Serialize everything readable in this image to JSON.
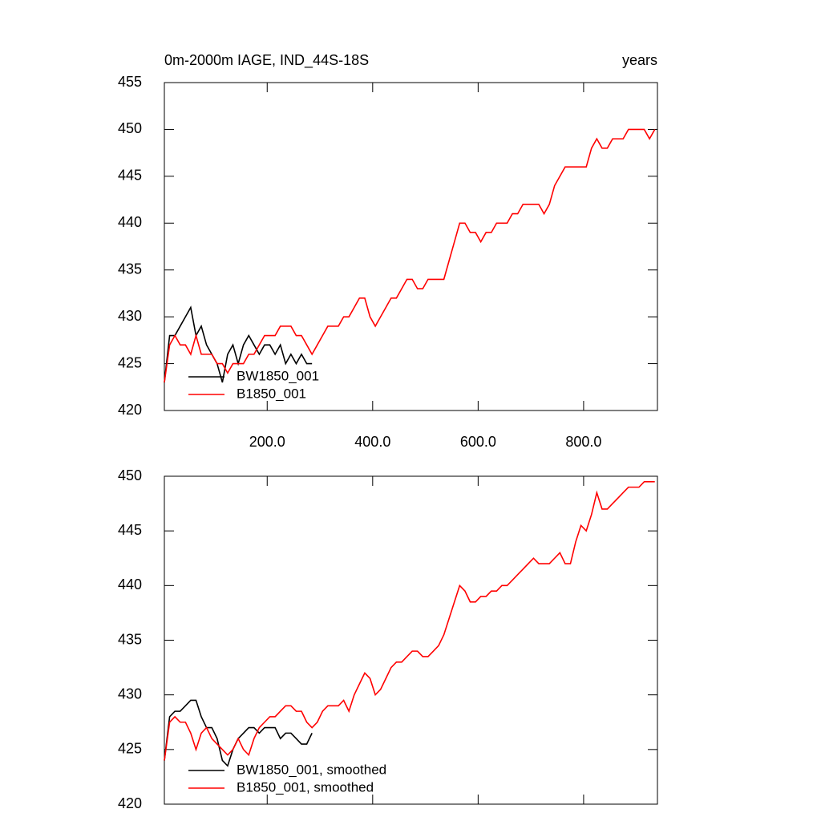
{
  "chart_data": [
    {
      "type": "line",
      "title": "0m-2000m IAGE, IND_44S-18S",
      "units_label": "years",
      "xlim": [
        5,
        940
      ],
      "ylim": [
        420,
        455
      ],
      "xticks": [
        {
          "value": 200,
          "label": "200.0"
        },
        {
          "value": 400,
          "label": "400.0"
        },
        {
          "value": 600,
          "label": "600.0"
        },
        {
          "value": 800,
          "label": "800.0"
        }
      ],
      "yticks": [
        420,
        425,
        430,
        435,
        440,
        445,
        450,
        455
      ],
      "legend": "lower left",
      "series": [
        {
          "name": "BW1850_001",
          "color": "#000000",
          "x": [
            5,
            15,
            25,
            35,
            45,
            55,
            65,
            75,
            85,
            95,
            105,
            115,
            125,
            135,
            145,
            155,
            165,
            175,
            185,
            195,
            205,
            215,
            225,
            235,
            245,
            255,
            265,
            275,
            285
          ],
          "values": [
            423,
            428,
            428,
            429,
            430,
            431,
            428,
            429,
            427,
            426,
            425,
            423,
            426,
            427,
            425,
            427,
            428,
            427,
            426,
            427,
            427,
            426,
            427,
            425,
            426,
            425,
            426,
            425,
            425
          ]
        },
        {
          "name": "B1850_001",
          "color": "#ff0000",
          "x": [
            5,
            15,
            25,
            35,
            45,
            55,
            65,
            75,
            85,
            95,
            105,
            115,
            125,
            135,
            145,
            155,
            165,
            175,
            185,
            195,
            205,
            215,
            225,
            235,
            245,
            255,
            265,
            275,
            285,
            295,
            305,
            315,
            325,
            335,
            345,
            355,
            365,
            375,
            385,
            395,
            405,
            415,
            425,
            435,
            445,
            455,
            465,
            475,
            485,
            495,
            505,
            515,
            525,
            535,
            545,
            555,
            565,
            575,
            585,
            595,
            605,
            615,
            625,
            635,
            645,
            655,
            665,
            675,
            685,
            695,
            705,
            715,
            725,
            735,
            745,
            755,
            765,
            775,
            785,
            795,
            805,
            815,
            825,
            835,
            845,
            855,
            865,
            875,
            885,
            895,
            905,
            915,
            925,
            935
          ],
          "values": [
            423,
            427,
            428,
            427,
            427,
            426,
            428,
            426,
            426,
            426,
            425,
            425,
            424,
            425,
            425,
            425,
            426,
            426,
            427,
            428,
            428,
            428,
            429,
            429,
            429,
            428,
            428,
            427,
            426,
            427,
            428,
            429,
            429,
            429,
            430,
            430,
            431,
            432,
            432,
            430,
            429,
            430,
            431,
            432,
            432,
            433,
            434,
            434,
            433,
            433,
            434,
            434,
            434,
            434,
            436,
            438,
            440,
            440,
            439,
            439,
            438,
            439,
            439,
            440,
            440,
            440,
            441,
            441,
            442,
            442,
            442,
            442,
            441,
            442,
            444,
            445,
            446,
            446,
            446,
            446,
            446,
            448,
            449,
            448,
            448,
            449,
            449,
            449,
            450,
            450,
            450,
            450,
            449,
            450
          ]
        }
      ]
    },
    {
      "type": "line",
      "xlim": [
        5,
        940
      ],
      "ylim": [
        420,
        450
      ],
      "yticks": [
        420,
        425,
        430,
        435,
        440,
        445,
        450
      ],
      "legend": "lower left",
      "series": [
        {
          "name": "BW1850_001, smoothed",
          "color": "#000000",
          "x": [
            5,
            15,
            25,
            35,
            45,
            55,
            65,
            75,
            85,
            95,
            105,
            115,
            125,
            135,
            145,
            155,
            165,
            175,
            185,
            195,
            205,
            215,
            225,
            235,
            245,
            255,
            265,
            275,
            285
          ],
          "values": [
            424,
            428,
            428.5,
            428.5,
            429,
            429.5,
            429.5,
            428,
            427,
            427,
            426,
            424,
            423.5,
            425,
            426,
            426.5,
            427,
            427,
            426.5,
            427,
            427,
            427,
            426,
            426.5,
            426.5,
            426,
            425.5,
            425.5,
            426.5
          ]
        },
        {
          "name": "B1850_001, smoothed",
          "color": "#ff0000",
          "x": [
            5,
            15,
            25,
            35,
            45,
            55,
            65,
            75,
            85,
            95,
            105,
            115,
            125,
            135,
            145,
            155,
            165,
            175,
            185,
            195,
            205,
            215,
            225,
            235,
            245,
            255,
            265,
            275,
            285,
            295,
            305,
            315,
            325,
            335,
            345,
            355,
            365,
            375,
            385,
            395,
            405,
            415,
            425,
            435,
            445,
            455,
            465,
            475,
            485,
            495,
            505,
            515,
            525,
            535,
            545,
            555,
            565,
            575,
            585,
            595,
            605,
            615,
            625,
            635,
            645,
            655,
            665,
            675,
            685,
            695,
            705,
            715,
            725,
            735,
            745,
            755,
            765,
            775,
            785,
            795,
            805,
            815,
            825,
            835,
            845,
            855,
            865,
            875,
            885,
            895,
            905,
            915,
            925,
            935
          ],
          "values": [
            424,
            427.5,
            428,
            427.5,
            427.5,
            426.5,
            425,
            426.5,
            427,
            426,
            425.5,
            425,
            424.5,
            425,
            426,
            425,
            424.5,
            426,
            427,
            427.5,
            428,
            428,
            428.5,
            429,
            429,
            428.5,
            428.5,
            427.5,
            427,
            427.5,
            428.5,
            429,
            429,
            429,
            429.5,
            428.5,
            430,
            431,
            432,
            431.5,
            430,
            430.5,
            431.5,
            432.5,
            433,
            433,
            433.5,
            434,
            434,
            433.5,
            433.5,
            434,
            434.5,
            435.5,
            437,
            438.5,
            440,
            439.5,
            438.5,
            438.5,
            439,
            439,
            439.5,
            439.5,
            440,
            440,
            440.5,
            441,
            441.5,
            442,
            442.5,
            442,
            442,
            442,
            442.5,
            443,
            442,
            442,
            444,
            445.5,
            445,
            446.5,
            448.5,
            447,
            447,
            447.5,
            448,
            448.5,
            449,
            449,
            449,
            449.5,
            449.5,
            449.5
          ]
        }
      ]
    }
  ]
}
